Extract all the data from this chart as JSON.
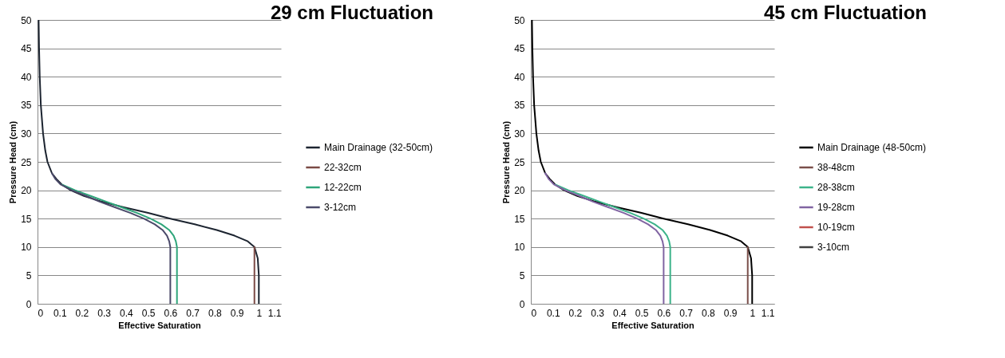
{
  "chart_data": [
    {
      "type": "line",
      "title": "29 cm Fluctuation",
      "xlabel": "Effective Saturation",
      "ylabel": "Pressure Head (cm)",
      "xlim": [
        0,
        1.1
      ],
      "xticks": [
        0,
        0.1,
        0.2,
        0.3,
        0.4,
        0.5,
        0.6,
        0.7,
        0.8,
        0.9,
        1,
        1.1
      ],
      "ylim": [
        0,
        50
      ],
      "yticks": [
        0,
        5,
        10,
        15,
        20,
        25,
        30,
        35,
        40,
        45,
        50
      ],
      "grid": "y",
      "legend": "right",
      "series": [
        {
          "name": "Main Drainage (32-50cm)",
          "color": "#1c2430",
          "x": [
            0.005,
            0.007,
            0.01,
            0.015,
            0.025,
            0.035,
            0.045,
            0.065,
            0.085,
            0.11,
            0.15,
            0.21,
            0.29,
            0.39,
            0.5,
            0.6,
            0.71,
            0.81,
            0.89,
            0.95,
            0.98,
            0.995,
            1,
            1
          ],
          "values": [
            50,
            45,
            40,
            35,
            30,
            27,
            25,
            23,
            22,
            21,
            20,
            19,
            18,
            17,
            16,
            15,
            14,
            13,
            12,
            11,
            10,
            8,
            5,
            0
          ]
        },
        {
          "name": "22-32cm",
          "color": "#7b4a45",
          "x": [
            0.98,
            0.98
          ],
          "values": [
            10,
            0
          ]
        },
        {
          "name": "12-22cm",
          "color": "#2ea57a",
          "x": [
            0.11,
            0.17,
            0.24,
            0.31,
            0.38,
            0.45,
            0.51,
            0.56,
            0.595,
            0.615,
            0.625,
            0.63,
            0.63,
            0.63
          ],
          "values": [
            21,
            20,
            19,
            18,
            17,
            16,
            15,
            14,
            13,
            12,
            11,
            10,
            5,
            0
          ]
        },
        {
          "name": "3-12cm",
          "color": "#4b4a6a",
          "x": [
            0.065,
            0.08,
            0.105,
            0.155,
            0.22,
            0.28,
            0.35,
            0.42,
            0.48,
            0.53,
            0.565,
            0.585,
            0.595,
            0.6,
            0.6,
            0.6
          ],
          "values": [
            23,
            22,
            21,
            20,
            19,
            18,
            17,
            16,
            15,
            14,
            13,
            12,
            11,
            10,
            5,
            0
          ]
        }
      ]
    },
    {
      "type": "line",
      "title": "45 cm Fluctuation",
      "xlabel": "Effective Saturation",
      "ylabel": "Pressure Head (cm)",
      "xlim": [
        0,
        1.1
      ],
      "xticks": [
        0,
        0.1,
        0.2,
        0.3,
        0.4,
        0.5,
        0.6,
        0.7,
        0.8,
        0.9,
        1,
        1.1
      ],
      "ylim": [
        0,
        50
      ],
      "yticks": [
        0,
        5,
        10,
        15,
        20,
        25,
        30,
        35,
        40,
        45,
        50
      ],
      "grid": "y",
      "legend": "right",
      "series": [
        {
          "name": "Main Drainage (48-50cm)",
          "color": "#000000",
          "x": [
            0.005,
            0.007,
            0.01,
            0.015,
            0.025,
            0.035,
            0.045,
            0.065,
            0.085,
            0.11,
            0.15,
            0.21,
            0.29,
            0.39,
            0.5,
            0.6,
            0.71,
            0.81,
            0.89,
            0.95,
            0.98,
            0.995,
            1,
            1
          ],
          "values": [
            50,
            45,
            40,
            35,
            30,
            27,
            25,
            23,
            22,
            21,
            20,
            19,
            18,
            17,
            16,
            15,
            14,
            13,
            12,
            11,
            10,
            8,
            5,
            0
          ]
        },
        {
          "name": "38-48cm",
          "color": "#7a4f4a",
          "x": [
            0.98,
            0.98
          ],
          "values": [
            10,
            0
          ]
        },
        {
          "name": "28-38cm",
          "color": "#3cb38a",
          "x": [
            0.11,
            0.17,
            0.24,
            0.31,
            0.38,
            0.45,
            0.51,
            0.56,
            0.595,
            0.615,
            0.625,
            0.63,
            0.63,
            0.63
          ],
          "values": [
            21,
            20,
            19,
            18,
            17,
            16,
            15,
            14,
            13,
            12,
            11,
            10,
            5,
            0
          ]
        },
        {
          "name": "19-28cm",
          "color": "#8064a2",
          "x": [
            0.065,
            0.08,
            0.105,
            0.155,
            0.22,
            0.28,
            0.35,
            0.42,
            0.48,
            0.53,
            0.565,
            0.585,
            0.595,
            0.6,
            0.6,
            0.6
          ],
          "values": [
            23,
            22,
            21,
            20,
            19,
            18,
            17,
            16,
            15,
            14,
            13,
            12,
            11,
            10,
            5,
            0
          ]
        },
        {
          "name": "10-19cm",
          "color": "#c0504d",
          "x": [
            null
          ],
          "values": [
            null
          ]
        },
        {
          "name": "3-10cm",
          "color": "#404040",
          "x": [
            null
          ],
          "values": [
            null
          ]
        }
      ]
    }
  ]
}
